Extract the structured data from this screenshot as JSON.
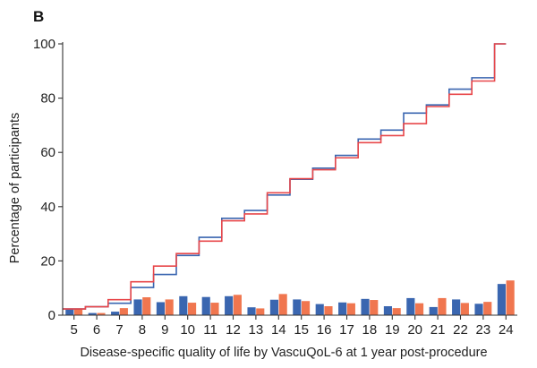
{
  "panel_label": "B",
  "colors": {
    "series_a": "#3a66b0",
    "series_b": "#f0764f",
    "cum_a": "#3a66b0",
    "cum_b": "#e8474a",
    "axis": "#333333"
  },
  "chart_data": {
    "type": "bar",
    "xlabel": "Disease-specific quality of life by VascuQoL-6 at 1 year post-procedure",
    "ylabel": "Percentage of participants",
    "ylim": [
      0,
      100
    ],
    "yticks": [
      0,
      20,
      40,
      60,
      80,
      100
    ],
    "categories": [
      "5",
      "6",
      "7",
      "8",
      "9",
      "10",
      "11",
      "12",
      "13",
      "14",
      "15",
      "16",
      "17",
      "18",
      "19",
      "20",
      "21",
      "22",
      "23",
      "24"
    ],
    "series": [
      {
        "values": [
          2.3,
          0.8,
          1.3,
          5.8,
          4.8,
          7.0,
          6.7,
          7.0,
          2.9,
          5.7,
          5.8,
          4.1,
          4.7,
          6.0,
          3.3,
          6.3,
          3.0,
          5.8,
          4.2,
          11.5
        ]
      },
      {
        "values": [
          2.3,
          0.8,
          2.6,
          6.6,
          5.8,
          4.6,
          4.6,
          7.5,
          2.5,
          7.8,
          5.2,
          3.3,
          4.4,
          5.6,
          2.6,
          4.4,
          6.3,
          4.5,
          4.9,
          12.8
        ]
      }
    ],
    "cumulative": [
      {
        "values": [
          2.3,
          3.1,
          4.4,
          10.2,
          15.0,
          22.0,
          28.7,
          35.7,
          38.6,
          44.3,
          50.1,
          54.2,
          58.9,
          64.9,
          68.2,
          74.5,
          77.5,
          83.3,
          87.5,
          100.0
        ]
      },
      {
        "values": [
          2.3,
          3.1,
          5.7,
          12.3,
          18.1,
          22.7,
          27.3,
          34.8,
          37.3,
          45.1,
          50.3,
          53.6,
          58.0,
          63.6,
          66.2,
          70.6,
          76.9,
          81.4,
          86.3,
          100.0
        ]
      }
    ]
  }
}
